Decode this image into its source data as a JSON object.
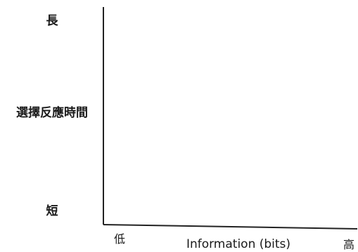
{
  "chart_data": {
    "type": "line",
    "title": "",
    "ylabel": "選擇反應時間",
    "xlabel": "Information (bits)",
    "y_axis_ends": {
      "top": "長",
      "bottom": "短"
    },
    "x_axis_ends": {
      "left": "低",
      "right": "高"
    },
    "series": [],
    "grid": false,
    "legend": "none"
  }
}
